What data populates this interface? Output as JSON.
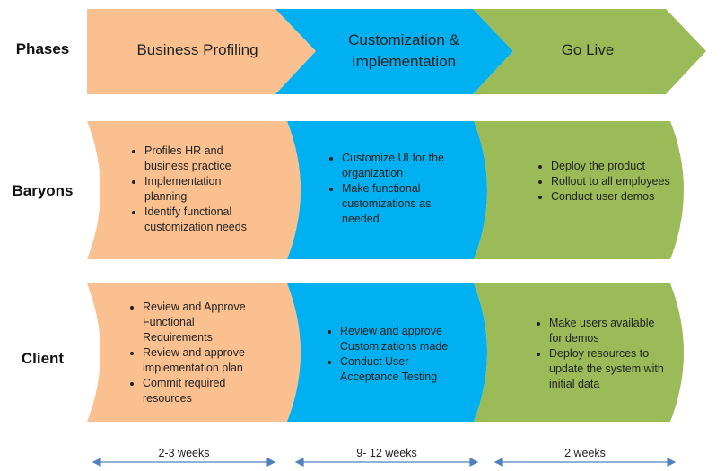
{
  "rows": {
    "phases": "Phases",
    "baryons": "Baryons",
    "client": "Client"
  },
  "phases": [
    {
      "title": "Business Profiling",
      "color": "#fac090"
    },
    {
      "title": "Customization &\nImplementation",
      "color": "#00b0f0"
    },
    {
      "title": "Go Live",
      "color": "#9bbb59"
    }
  ],
  "baryons": [
    [
      "Profiles HR and business practice",
      "Implementation planning",
      "Identify functional customization  needs"
    ],
    [
      "Customize UI for the organization",
      "Make functional customizations as needed"
    ],
    [
      "Deploy the product",
      "Rollout to all employees",
      "Conduct user demos"
    ]
  ],
  "client": [
    [
      "Review and Approve Functional Requirements",
      "Review and approve implementation plan",
      "Commit required resources"
    ],
    [
      "Review and approve Customizations made",
      "Conduct User Acceptance Testing"
    ],
    [
      "Make users available for demos",
      "Deploy resources to update the system with initial data"
    ]
  ],
  "durations": [
    "2-3 weeks",
    "9- 12 weeks",
    "2 weeks"
  ],
  "colors": {
    "arrow": "#4f81bd",
    "text": "#222222"
  }
}
